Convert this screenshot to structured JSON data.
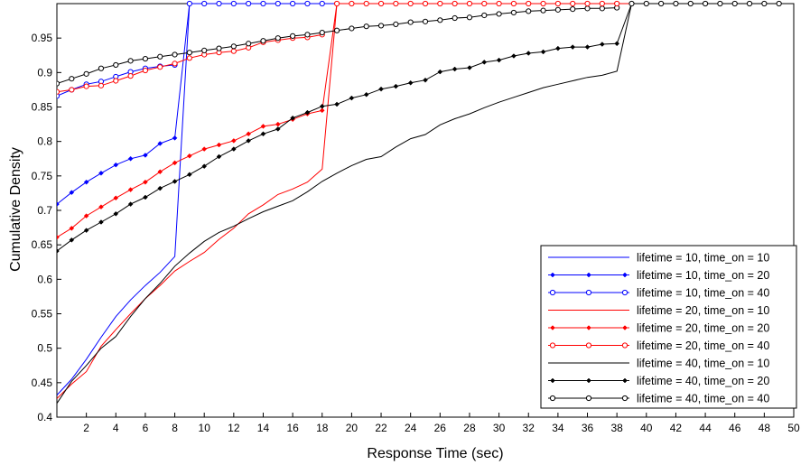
{
  "chart_data": {
    "type": "line",
    "xlabel": "Response Time (sec)",
    "ylabel": "Cumulative Density",
    "xlim": [
      0,
      50
    ],
    "ylim": [
      0.4,
      1.0
    ],
    "x_ticks": [
      2,
      4,
      6,
      8,
      10,
      12,
      14,
      16,
      18,
      20,
      22,
      24,
      26,
      28,
      30,
      32,
      34,
      36,
      38,
      40,
      42,
      44,
      46,
      48,
      50
    ],
    "x_tick_labels": [
      "2",
      "4",
      "6",
      "8",
      "10",
      "12",
      "14",
      "16",
      "18",
      "20",
      "22",
      "24",
      "26",
      "28",
      "30",
      "32",
      "34",
      "36",
      "38",
      "40",
      "42",
      "44",
      "46",
      "48",
      "50"
    ],
    "y_ticks": [
      0.4,
      0.45,
      0.5,
      0.55,
      0.6,
      0.65,
      0.7,
      0.75,
      0.8,
      0.85,
      0.9,
      0.95
    ],
    "y_tick_labels": [
      "0.4",
      "0.45",
      "0.5",
      "0.55",
      "0.6",
      "0.65",
      "0.7",
      "0.75",
      "0.8",
      "0.85",
      "0.9",
      "0.95"
    ],
    "grid": false,
    "legend_position": "bottom-right",
    "series": [
      {
        "name": "lifetime = 10, time_on = 10",
        "color": "#0000ff",
        "marker": "none",
        "x": [
          0,
          1,
          2,
          3,
          4,
          5,
          6,
          7,
          8,
          9,
          10,
          11,
          12,
          13,
          14,
          15,
          16,
          17,
          18,
          19,
          20,
          21,
          22,
          23,
          24,
          25,
          26,
          27,
          28,
          29,
          30,
          31,
          32,
          33,
          34,
          35,
          36,
          37,
          38,
          39,
          40,
          41,
          42,
          43,
          44,
          45,
          46,
          47,
          48,
          49
        ],
        "y": [
          0.432,
          0.455,
          0.484,
          0.516,
          0.546,
          0.57,
          0.591,
          0.61,
          0.633,
          1.0,
          1.0,
          1.0,
          1.0,
          1.0,
          1.0,
          1.0,
          1.0,
          1.0,
          1.0,
          1.0,
          1.0,
          1.0,
          1.0,
          1.0,
          1.0,
          1.0,
          1.0,
          1.0,
          1.0,
          1.0,
          1.0,
          1.0,
          1.0,
          1.0,
          1.0,
          1.0,
          1.0,
          1.0,
          1.0,
          1.0,
          1.0,
          1.0,
          1.0,
          1.0,
          1.0,
          1.0,
          1.0,
          1.0,
          1.0,
          1.0
        ]
      },
      {
        "name": "lifetime = 10, time_on = 20",
        "color": "#0000ff",
        "marker": "dot",
        "x": [
          0,
          1,
          2,
          3,
          4,
          5,
          6,
          7,
          8,
          9,
          10,
          11,
          12,
          13,
          14,
          15,
          16,
          17,
          18
        ],
        "y": [
          0.709,
          0.726,
          0.741,
          0.754,
          0.766,
          0.775,
          0.78,
          0.797,
          0.805,
          1.0,
          1.0,
          1.0,
          1.0,
          1.0,
          1.0,
          1.0,
          1.0,
          1.0,
          1.0
        ]
      },
      {
        "name": "lifetime = 10, time_on = 40",
        "color": "#0000ff",
        "marker": "circle",
        "x": [
          0,
          1,
          2,
          3,
          4,
          5,
          6,
          7,
          8
        ],
        "y": [
          0.866,
          0.875,
          0.883,
          0.887,
          0.894,
          0.901,
          0.906,
          0.909,
          0.911
        ]
      },
      {
        "name": "lifetime = 20, time_on = 10",
        "color": "#ff0000",
        "marker": "none",
        "x": [
          0,
          1,
          2,
          3,
          4,
          5,
          6,
          7,
          8,
          9,
          10,
          11,
          12,
          13,
          14,
          15,
          16,
          17,
          18,
          19,
          20,
          21,
          22,
          23,
          24,
          25,
          26,
          27,
          28,
          29,
          30,
          31,
          32,
          33,
          34,
          35,
          36,
          37,
          38,
          39,
          40,
          41,
          42,
          43,
          44,
          45,
          46,
          47,
          48,
          49
        ],
        "y": [
          0.427,
          0.448,
          0.466,
          0.503,
          0.527,
          0.55,
          0.572,
          0.591,
          0.612,
          0.626,
          0.639,
          0.658,
          0.674,
          0.695,
          0.708,
          0.723,
          0.731,
          0.741,
          0.76,
          1.0,
          1.0,
          1.0,
          1.0,
          1.0,
          1.0,
          1.0,
          1.0,
          1.0,
          1.0,
          1.0,
          1.0,
          1.0,
          1.0,
          1.0,
          1.0,
          1.0,
          1.0,
          1.0,
          1.0,
          1.0,
          1.0,
          1.0,
          1.0,
          1.0,
          1.0,
          1.0,
          1.0,
          1.0,
          1.0,
          1.0
        ]
      },
      {
        "name": "lifetime = 20, time_on = 20",
        "color": "#ff0000",
        "marker": "dot",
        "x": [
          0,
          1,
          2,
          3,
          4,
          5,
          6,
          7,
          8,
          9,
          10,
          11,
          12,
          13,
          14,
          15,
          16,
          17,
          18,
          19,
          20,
          21,
          22,
          23,
          24,
          25,
          26,
          27,
          28,
          29,
          30,
          31,
          32,
          33,
          34,
          35,
          36,
          37,
          38,
          39,
          40,
          41,
          42,
          43,
          44,
          45,
          46,
          47,
          48,
          49
        ],
        "y": [
          0.661,
          0.674,
          0.692,
          0.705,
          0.718,
          0.73,
          0.741,
          0.756,
          0.769,
          0.779,
          0.789,
          0.795,
          0.801,
          0.811,
          0.822,
          0.825,
          0.832,
          0.84,
          0.845,
          1.0,
          1.0,
          1.0,
          1.0,
          1.0,
          1.0,
          1.0,
          1.0,
          1.0,
          1.0,
          1.0,
          1.0,
          1.0,
          1.0,
          1.0,
          1.0,
          1.0,
          1.0,
          1.0,
          1.0,
          1.0,
          1.0,
          1.0,
          1.0,
          1.0,
          1.0,
          1.0,
          1.0,
          1.0,
          1.0,
          1.0
        ]
      },
      {
        "name": "lifetime = 20, time_on = 40",
        "color": "#ff0000",
        "marker": "circle",
        "x": [
          0,
          1,
          2,
          3,
          4,
          5,
          6,
          7,
          8,
          9,
          10,
          11,
          12,
          13,
          14,
          15,
          16,
          17,
          18
        ],
        "y": [
          0.872,
          0.875,
          0.88,
          0.881,
          0.888,
          0.895,
          0.903,
          0.908,
          0.913,
          0.921,
          0.926,
          0.929,
          0.931,
          0.936,
          0.944,
          0.947,
          0.95,
          0.951,
          0.955
        ]
      },
      {
        "name": "lifetime = 40, time_on = 10",
        "color": "#000000",
        "marker": "none",
        "x": [
          0,
          1,
          2,
          3,
          4,
          5,
          6,
          7,
          8,
          9,
          10,
          11,
          12,
          13,
          14,
          15,
          16,
          17,
          18,
          19,
          20,
          21,
          22,
          23,
          24,
          25,
          26,
          27,
          28,
          29,
          30,
          31,
          32,
          33,
          34,
          35,
          36,
          37,
          38,
          39,
          40,
          41,
          42,
          43,
          44,
          45,
          46,
          47,
          48,
          49
        ],
        "y": [
          0.42,
          0.452,
          0.475,
          0.5,
          0.517,
          0.546,
          0.572,
          0.594,
          0.619,
          0.638,
          0.655,
          0.668,
          0.677,
          0.688,
          0.698,
          0.706,
          0.714,
          0.727,
          0.742,
          0.754,
          0.765,
          0.774,
          0.778,
          0.792,
          0.804,
          0.81,
          0.824,
          0.833,
          0.84,
          0.849,
          0.857,
          0.864,
          0.871,
          0.878,
          0.883,
          0.888,
          0.893,
          0.896,
          0.902,
          1.0,
          1.0,
          1.0,
          1.0,
          1.0,
          1.0,
          1.0,
          1.0,
          1.0,
          1.0,
          1.0
        ]
      },
      {
        "name": "lifetime = 40, time_on = 20",
        "color": "#000000",
        "marker": "dot",
        "x": [
          0,
          1,
          2,
          3,
          4,
          5,
          6,
          7,
          8,
          9,
          10,
          11,
          12,
          13,
          14,
          15,
          16,
          17,
          18,
          19,
          20,
          21,
          22,
          23,
          24,
          25,
          26,
          27,
          28,
          29,
          30,
          31,
          32,
          33,
          34,
          35,
          36,
          37,
          38,
          39,
          40,
          41,
          42,
          43,
          44,
          45,
          46,
          47,
          48,
          49
        ],
        "y": [
          0.641,
          0.657,
          0.671,
          0.683,
          0.695,
          0.709,
          0.719,
          0.732,
          0.742,
          0.752,
          0.764,
          0.778,
          0.789,
          0.801,
          0.811,
          0.818,
          0.834,
          0.842,
          0.851,
          0.854,
          0.863,
          0.868,
          0.876,
          0.88,
          0.885,
          0.889,
          0.901,
          0.905,
          0.907,
          0.915,
          0.918,
          0.924,
          0.928,
          0.93,
          0.935,
          0.937,
          0.937,
          0.941,
          0.942,
          1.0,
          1.0,
          1.0,
          1.0,
          1.0,
          1.0,
          1.0,
          1.0,
          1.0,
          1.0,
          1.0
        ]
      },
      {
        "name": "lifetime = 40, time_on = 40",
        "color": "#000000",
        "marker": "circle",
        "x": [
          0,
          1,
          2,
          3,
          4,
          5,
          6,
          7,
          8,
          9,
          10,
          11,
          12,
          13,
          14,
          15,
          16,
          17,
          18,
          19,
          20,
          21,
          22,
          23,
          24,
          25,
          26,
          27,
          28,
          29,
          30,
          31,
          32,
          33,
          34,
          35,
          36,
          37,
          38
        ],
        "y": [
          0.884,
          0.891,
          0.898,
          0.906,
          0.911,
          0.917,
          0.92,
          0.923,
          0.926,
          0.929,
          0.932,
          0.935,
          0.938,
          0.942,
          0.946,
          0.95,
          0.953,
          0.955,
          0.958,
          0.961,
          0.964,
          0.967,
          0.968,
          0.97,
          0.973,
          0.974,
          0.976,
          0.979,
          0.98,
          0.983,
          0.985,
          0.987,
          0.989,
          0.99,
          0.991,
          0.992,
          0.993,
          0.993,
          0.994
        ]
      },
      {
        "name": "lifetime = 40, time_on = 40 (saturated)",
        "color": "#000000",
        "marker": "circle",
        "hidden_legend": true,
        "x": [
          39,
          40,
          41,
          42,
          43,
          44,
          45,
          46,
          47,
          48,
          49
        ],
        "y": [
          1.0,
          1.0,
          1.0,
          1.0,
          1.0,
          1.0,
          1.0,
          1.0,
          1.0,
          1.0,
          1.0
        ]
      },
      {
        "name": "lifetime = 20, time_on = 40 (saturated)",
        "color": "#ff0000",
        "marker": "circle",
        "hidden_legend": true,
        "x": [
          19,
          20,
          21,
          22,
          23,
          24,
          25,
          26,
          27,
          28,
          29,
          30,
          31,
          32,
          33,
          34,
          35,
          36,
          37,
          38
        ],
        "y": [
          1.0,
          1.0,
          1.0,
          1.0,
          1.0,
          1.0,
          1.0,
          1.0,
          1.0,
          1.0,
          1.0,
          1.0,
          1.0,
          1.0,
          1.0,
          1.0,
          1.0,
          1.0,
          1.0,
          1.0
        ]
      },
      {
        "name": "lifetime = 10, time_on = 40 (saturated)",
        "color": "#0000ff",
        "marker": "circle",
        "hidden_legend": true,
        "x": [
          9,
          10,
          11,
          12,
          13,
          14,
          15,
          16,
          17,
          18
        ],
        "y": [
          1.0,
          1.0,
          1.0,
          1.0,
          1.0,
          1.0,
          1.0,
          1.0,
          1.0,
          1.0
        ]
      }
    ]
  }
}
